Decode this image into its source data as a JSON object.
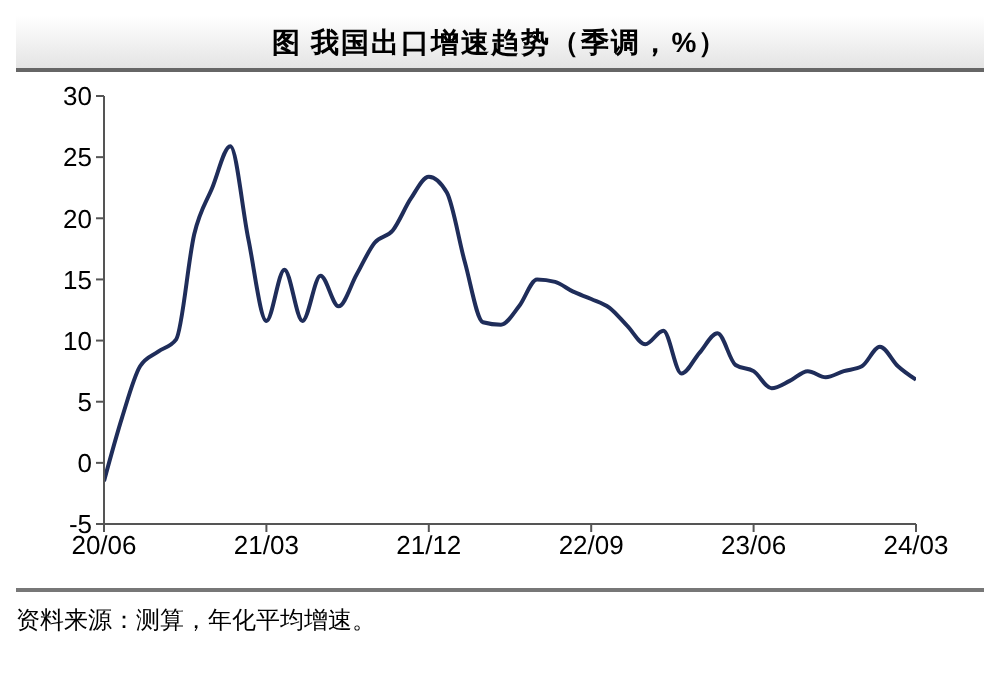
{
  "chart_data": {
    "type": "line",
    "title": "图  我国出口增速趋势（季调，%）",
    "annotations": [
      "资料来源：测算，年化平均增速。"
    ],
    "categories": [
      "20/06",
      null,
      null,
      null,
      null,
      null,
      null,
      null,
      null,
      "21/03",
      null,
      null,
      null,
      null,
      null,
      null,
      null,
      null,
      "21/12",
      null,
      null,
      null,
      null,
      null,
      null,
      null,
      null,
      "22/09",
      null,
      null,
      null,
      null,
      null,
      null,
      null,
      null,
      "23/06",
      null,
      null,
      null,
      null,
      null,
      null,
      null,
      null,
      "24/03"
    ],
    "series": [
      {
        "color": "#1f2d5a",
        "values": [
          -1.5,
          3.7,
          7.9,
          9.1,
          10.1,
          18.7,
          22.5,
          25.9,
          18.3,
          11.6,
          15.8,
          11.6,
          15.3,
          12.8,
          15.4,
          18.0,
          19.0,
          21.6,
          23.4,
          22.1,
          16.4,
          11.5,
          11.3,
          12.8,
          15.0,
          14.8,
          14.0,
          13.4,
          12.7,
          11.2,
          9.7,
          10.8,
          7.3,
          9.0,
          10.6,
          8.0,
          7.5,
          6.1,
          6.7,
          7.5,
          7.0,
          7.5,
          7.9,
          9.5,
          7.9,
          6.8
        ]
      }
    ],
    "ylim": [
      -5,
      30
    ],
    "yticks": [
      -5,
      0,
      5,
      10,
      15,
      20,
      25,
      30
    ],
    "grid": false,
    "legend": false,
    "marker": "none",
    "line_style": "solid"
  }
}
